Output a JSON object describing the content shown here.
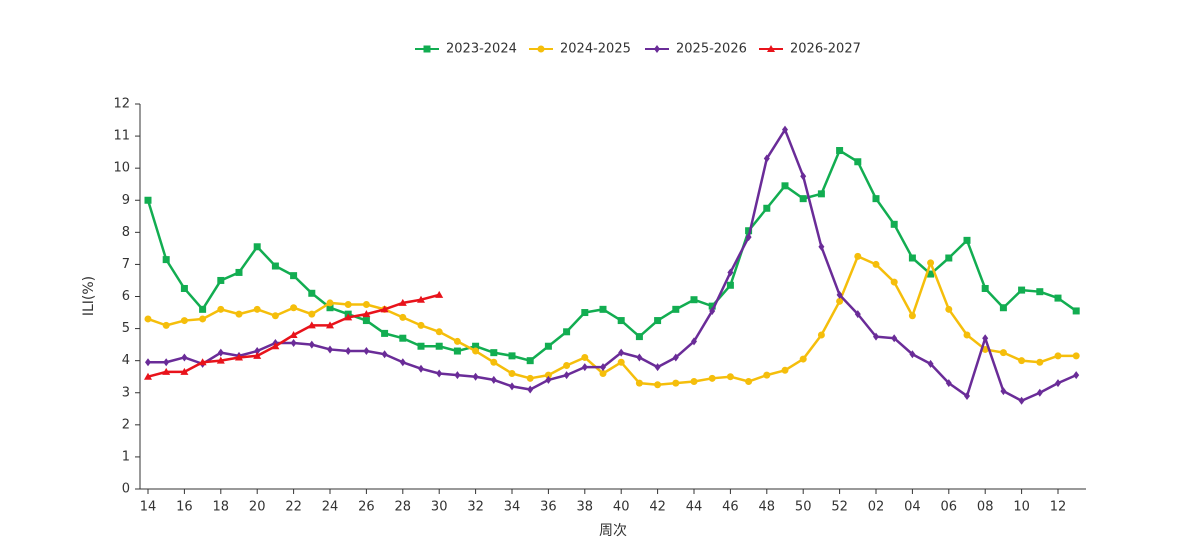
{
  "chart_data": {
    "type": "line",
    "categories": [
      "14",
      null,
      "16",
      null,
      "18",
      null,
      "20",
      null,
      "22",
      null,
      "24",
      null,
      "26",
      null,
      "28",
      null,
      "30",
      null,
      "32",
      null,
      "34",
      null,
      "36",
      null,
      "38",
      null,
      "40",
      null,
      "42",
      null,
      "44",
      null,
      "46",
      null,
      "48",
      null,
      "50",
      null,
      "52",
      null,
      "02",
      null,
      "04",
      null,
      "06",
      null,
      "08",
      null,
      "10",
      null,
      "12",
      null
    ],
    "x_label": "周次",
    "y_label": "ILI(%)",
    "ylim": [
      0,
      12
    ],
    "yticks": [
      0,
      1,
      2,
      3,
      4,
      5,
      6,
      7,
      8,
      9,
      10,
      11,
      12
    ],
    "grid": false,
    "legend": "top",
    "series": [
      {
        "name": "2023-2024",
        "color": "#12ad51",
        "marker": "square",
        "values": [
          9.0,
          7.15,
          6.25,
          5.6,
          6.5,
          6.75,
          7.55,
          6.95,
          6.65,
          6.1,
          5.65,
          5.45,
          5.25,
          4.85,
          4.7,
          4.45,
          4.45,
          4.3,
          4.45,
          4.25,
          4.15,
          4.0,
          4.45,
          4.9,
          5.5,
          5.6,
          5.25,
          4.75,
          5.25,
          5.6,
          5.9,
          5.7,
          6.35,
          8.05,
          8.75,
          9.45,
          9.05,
          9.2,
          10.55,
          10.2,
          9.05,
          8.25,
          7.2,
          6.7,
          7.2,
          7.75,
          6.25,
          5.65,
          6.2,
          6.15,
          5.95,
          5.55
        ]
      },
      {
        "name": "2024-2025",
        "color": "#f5be0b",
        "marker": "circle",
        "values": [
          5.3,
          5.1,
          5.25,
          5.3,
          5.6,
          5.45,
          5.6,
          5.4,
          5.65,
          5.45,
          5.8,
          5.75,
          5.75,
          5.6,
          5.35,
          5.1,
          4.9,
          4.6,
          4.3,
          3.95,
          3.6,
          3.45,
          3.55,
          3.85,
          4.1,
          3.6,
          3.95,
          3.3,
          3.25,
          3.3,
          3.35,
          3.45,
          3.5,
          3.35,
          3.55,
          3.7,
          4.05,
          4.8,
          5.85,
          7.25,
          7.0,
          6.45,
          5.4,
          7.05,
          5.6,
          4.8,
          4.35,
          4.25,
          4.0,
          3.95,
          4.15,
          4.15
        ]
      },
      {
        "name": "2025-2026",
        "color": "#6a2c98",
        "marker": "diamond",
        "values": [
          3.95,
          3.95,
          4.1,
          3.9,
          4.25,
          4.15,
          4.3,
          4.55,
          4.55,
          4.5,
          4.35,
          4.3,
          4.3,
          4.2,
          3.95,
          3.75,
          3.6,
          3.55,
          3.5,
          3.4,
          3.2,
          3.1,
          3.4,
          3.55,
          3.8,
          3.8,
          4.25,
          4.1,
          3.8,
          4.1,
          4.6,
          5.55,
          6.75,
          7.85,
          10.3,
          11.2,
          9.75,
          7.55,
          6.05,
          5.45,
          4.75,
          4.7,
          4.2,
          3.9,
          3.3,
          2.9,
          4.7,
          3.05,
          2.75,
          3.0,
          3.3,
          3.55
        ]
      },
      {
        "name": "2026-2027",
        "color": "#e8131b",
        "marker": "triangle",
        "values": [
          3.5,
          3.65,
          3.65,
          3.95,
          4.0,
          4.1,
          4.15,
          4.45,
          4.8,
          5.1,
          5.1,
          5.35,
          5.45,
          5.6,
          5.8,
          5.9,
          6.05,
          null,
          null,
          null,
          null,
          null,
          null,
          null,
          null,
          null,
          null,
          null,
          null,
          null,
          null,
          null,
          null,
          null,
          null,
          null,
          null,
          null,
          null,
          null,
          null,
          null,
          null,
          null,
          null,
          null,
          null,
          null,
          null,
          null,
          null,
          null
        ]
      }
    ]
  }
}
